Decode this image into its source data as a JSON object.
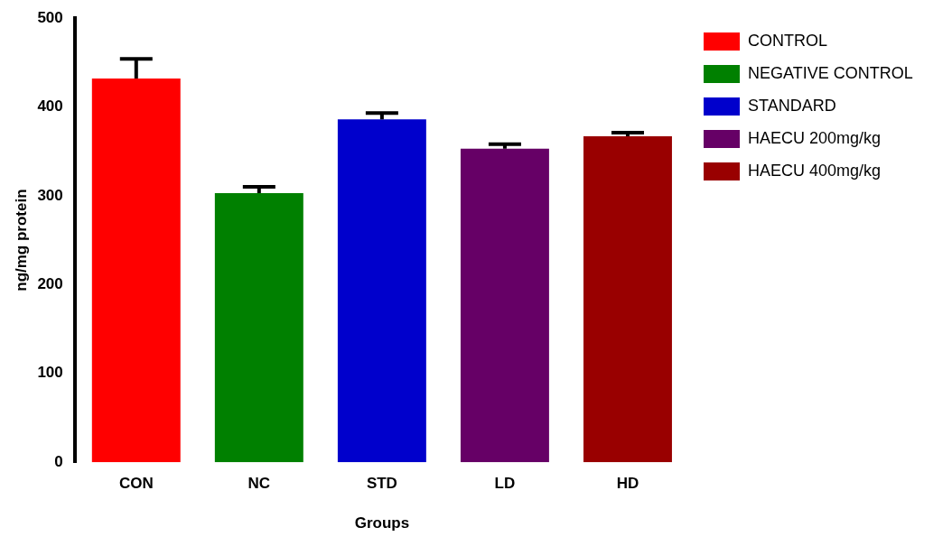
{
  "chart_data": {
    "type": "bar",
    "xlabel": "Groups",
    "ylabel": "ng/mg protein",
    "categories": [
      "CON",
      "NC",
      "STD",
      "LD",
      "HD"
    ],
    "series": [
      {
        "name": "CONTROL",
        "color": "#ff0000",
        "values": [
          432,
          null,
          null,
          null,
          null
        ],
        "errors": [
          22,
          null,
          null,
          null,
          null
        ]
      },
      {
        "name": "NEGATIVE CONTROL",
        "color": "#008000",
        "values": [
          null,
          303,
          null,
          null,
          null
        ],
        "errors": [
          null,
          7,
          null,
          null,
          null
        ]
      },
      {
        "name": "STANDARD",
        "color": "#0000cc",
        "values": [
          null,
          null,
          386,
          null,
          null
        ],
        "errors": [
          null,
          null,
          7,
          null,
          null
        ]
      },
      {
        "name": "HAECU 200mg/kg",
        "color": "#660066",
        "values": [
          null,
          null,
          null,
          353,
          null
        ],
        "errors": [
          null,
          null,
          null,
          5,
          null
        ]
      },
      {
        "name": "HAECU 400mg/kg",
        "color": "#990000",
        "values": [
          null,
          null,
          null,
          null,
          367
        ],
        "errors": [
          null,
          null,
          null,
          null,
          4
        ]
      }
    ],
    "ylim": [
      0,
      500
    ],
    "yticks": [
      0,
      100,
      200,
      300,
      400,
      500
    ],
    "grid": false,
    "legend": "right"
  }
}
